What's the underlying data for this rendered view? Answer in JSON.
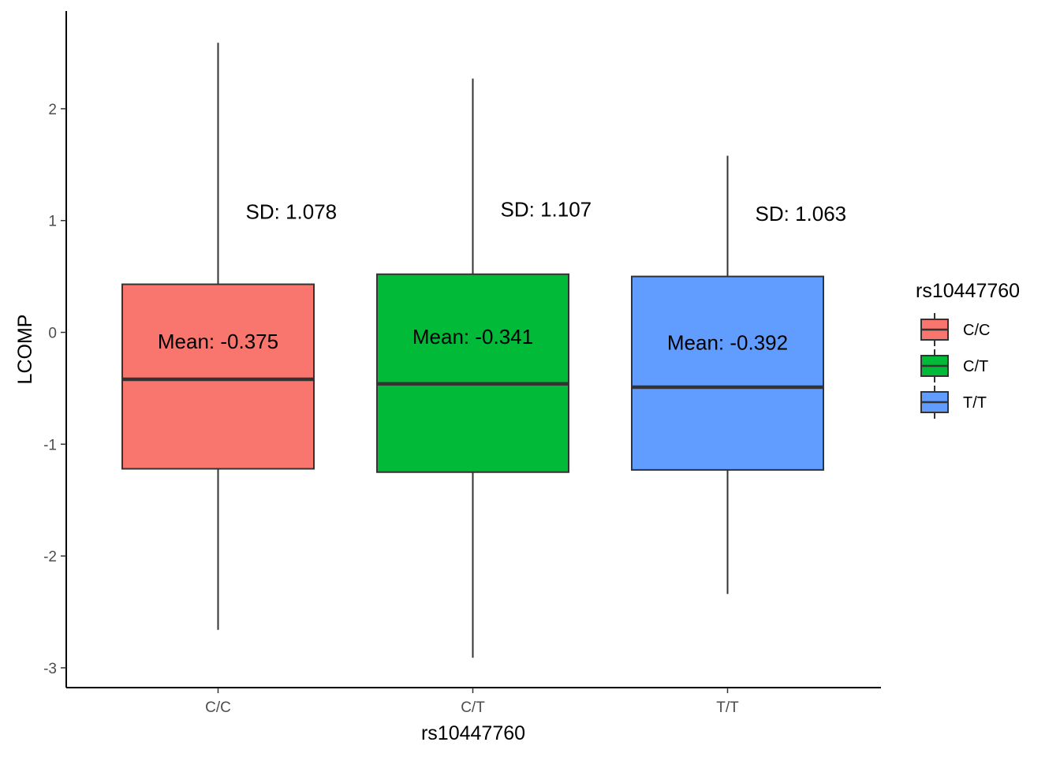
{
  "chart_data": {
    "type": "boxplot",
    "xlabel": "rs10447760",
    "ylabel": "LCOMP",
    "ylim": [
      -3.2,
      2.9
    ],
    "yticks": [
      -3,
      -2,
      -1,
      0,
      1,
      2
    ],
    "ytick_labels": [
      "-3",
      "-2",
      "-1",
      "0",
      "1",
      "2"
    ],
    "grid": false,
    "legend": {
      "title": "rs10447760",
      "position": "right",
      "entries": [
        "C/C",
        "C/T",
        "T/T"
      ]
    },
    "categories": [
      "C/C",
      "C/T",
      "T/T"
    ],
    "series": [
      {
        "name": "C/C",
        "color": "#F8766D",
        "whisker_low": -2.66,
        "q1": -1.22,
        "median": -0.42,
        "q3": 0.43,
        "whisker_high": 2.59,
        "mean_label": "Mean:  -0.375",
        "mean_label_y": -0.08,
        "sd_label": "SD:  1.078",
        "sd_label_y": 1.08
      },
      {
        "name": "C/T",
        "color": "#00BA38",
        "whisker_low": -2.91,
        "q1": -1.25,
        "median": -0.46,
        "q3": 0.52,
        "whisker_high": 2.27,
        "mean_label": "Mean:  -0.341",
        "mean_label_y": -0.04,
        "sd_label": "SD:  1.107",
        "sd_label_y": 1.1
      },
      {
        "name": "T/T",
        "color": "#619CFF",
        "whisker_low": -2.34,
        "q1": -1.23,
        "median": -0.49,
        "q3": 0.5,
        "whisker_high": 1.58,
        "mean_label": "Mean:  -0.392",
        "mean_label_y": -0.09,
        "sd_label": "SD:  1.063",
        "sd_label_y": 1.06
      }
    ]
  }
}
